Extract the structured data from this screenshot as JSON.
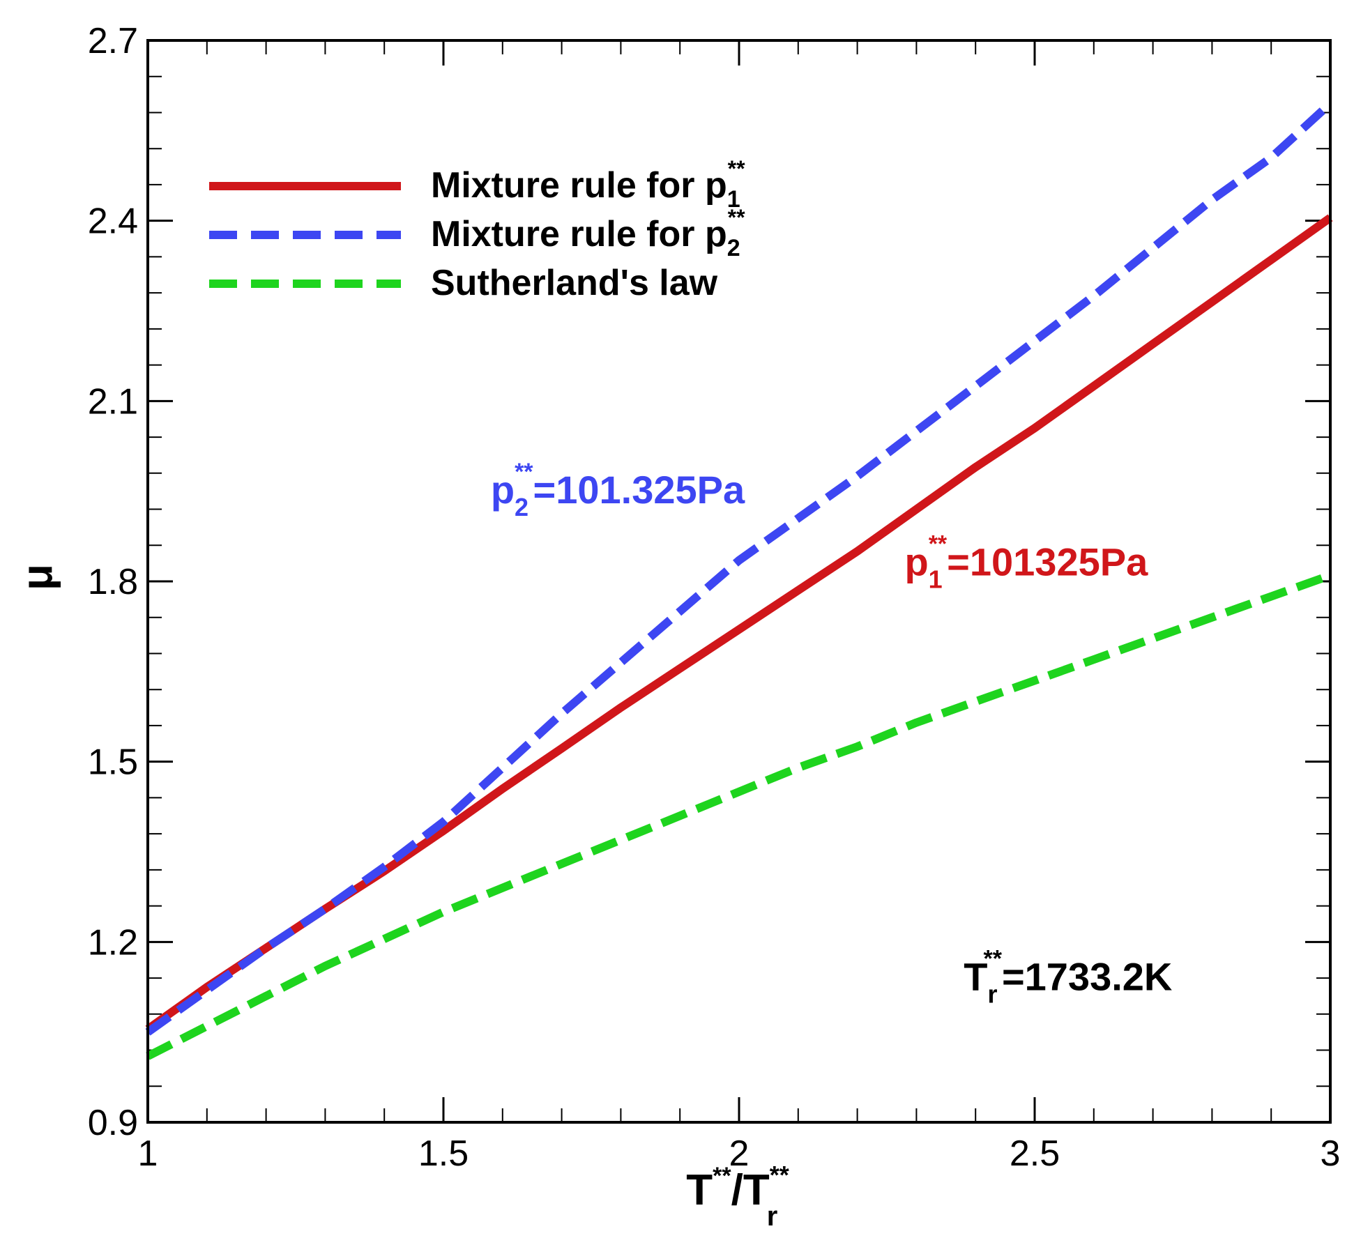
{
  "chart_data": {
    "type": "line",
    "x_label": {
      "main": "T",
      "sup": "**",
      "slash": "/T",
      "sup2": "**",
      "sub": "r"
    },
    "y_label": "μ",
    "xlim": [
      1,
      3
    ],
    "ylim": [
      0.9,
      2.7
    ],
    "x_ticks": [
      "1",
      "1.5",
      "2",
      "2.5",
      "3"
    ],
    "y_ticks": [
      "0.9",
      "1.2",
      "1.5",
      "1.8",
      "2.1",
      "2.4",
      "2.7"
    ],
    "series": [
      {
        "name": "Mixture rule for p1**",
        "legend": {
          "text": "Mixture rule for p",
          "sub": "1",
          "sup": "**"
        },
        "color": "#d0161a",
        "style": "solid",
        "x": [
          1.0,
          1.1,
          1.2,
          1.3,
          1.4,
          1.5,
          1.6,
          1.7,
          1.8,
          1.9,
          2.0,
          2.1,
          2.2,
          2.3,
          2.4,
          2.5,
          2.6,
          2.7,
          2.8,
          2.9,
          3.0
        ],
        "y": [
          1.055,
          1.125,
          1.19,
          1.255,
          1.318,
          1.385,
          1.455,
          1.522,
          1.59,
          1.655,
          1.72,
          1.785,
          1.85,
          1.92,
          1.99,
          2.055,
          2.125,
          2.195,
          2.265,
          2.335,
          2.405
        ]
      },
      {
        "name": "Mixture rule for p2**",
        "legend": {
          "text": "Mixture rule for p",
          "sub": "2",
          "sup": "**"
        },
        "color": "#3d46f2",
        "style": "dashed",
        "x": [
          1.0,
          1.1,
          1.2,
          1.3,
          1.4,
          1.5,
          1.6,
          1.7,
          1.8,
          1.9,
          2.0,
          2.1,
          2.2,
          2.3,
          2.4,
          2.5,
          2.6,
          2.7,
          2.8,
          2.9,
          3.0
        ],
        "y": [
          1.05,
          1.12,
          1.19,
          1.255,
          1.325,
          1.4,
          1.49,
          1.58,
          1.665,
          1.75,
          1.835,
          1.905,
          1.975,
          2.05,
          2.125,
          2.2,
          2.275,
          2.355,
          2.435,
          2.505,
          2.595
        ]
      },
      {
        "name": "Sutherland's law",
        "legend": {
          "text": "Sutherland's law",
          "sub": "",
          "sup": ""
        },
        "color": "#1ed41e",
        "style": "dashed",
        "x": [
          1.0,
          1.1,
          1.2,
          1.3,
          1.4,
          1.5,
          1.6,
          1.7,
          1.8,
          1.9,
          2.0,
          2.1,
          2.2,
          2.3,
          2.4,
          2.5,
          2.6,
          2.7,
          2.8,
          2.9,
          3.0
        ],
        "y": [
          1.01,
          1.06,
          1.11,
          1.16,
          1.205,
          1.25,
          1.29,
          1.33,
          1.37,
          1.41,
          1.45,
          1.49,
          1.525,
          1.565,
          1.6,
          1.635,
          1.67,
          1.705,
          1.74,
          1.775,
          1.81
        ]
      }
    ],
    "annotations": [
      {
        "id": "p2",
        "base": "p",
        "sub": "2",
        "sup": "**",
        "text": "=101.325Pa",
        "color": "#3d46f2",
        "x": 1.58,
        "y": 1.93
      },
      {
        "id": "p1",
        "base": "p",
        "sub": "1",
        "sup": "**",
        "text": "=101325Pa",
        "color": "#d0161a",
        "x": 2.28,
        "y": 1.81
      },
      {
        "id": "tr",
        "base": "T",
        "sub": "r",
        "sup": "**",
        "text": "=1733.2K",
        "color": "#000000",
        "x": 2.38,
        "y": 1.12
      }
    ]
  }
}
